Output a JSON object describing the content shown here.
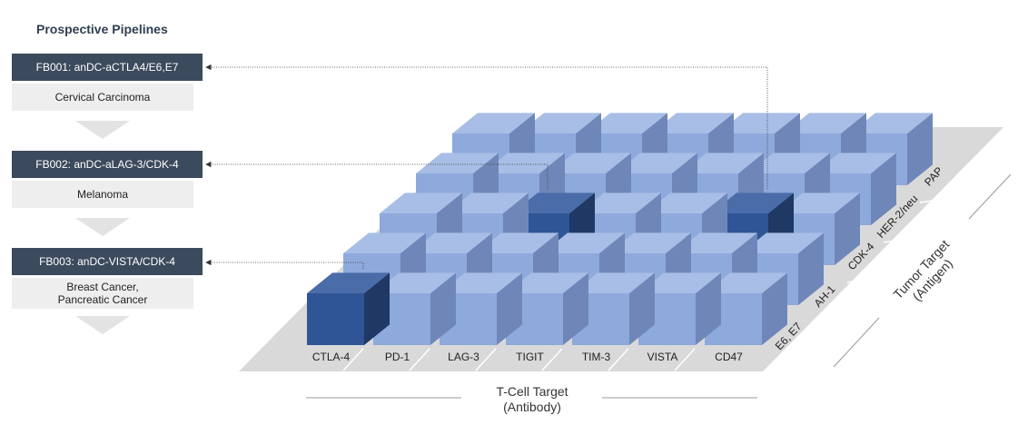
{
  "heading": "Prospective Pipelines",
  "pipelines": [
    {
      "code_label": "FB001: anDC-aCTLA4/E6,E7",
      "indication": "Cervical Carcinoma"
    },
    {
      "code_label": "FB002: anDC-aLAG-3/CDK-4",
      "indication": "Melanoma"
    },
    {
      "code_label": "FB003: anDC-VISTA/CDK-4",
      "indication": "Breast Cancer,\nPancreatic Cancer"
    }
  ],
  "matrix": {
    "t_cell_targets": [
      "CTLA-4",
      "PD-1",
      "LAG-3",
      "TIGIT",
      "TIM-3",
      "VISTA",
      "CD47"
    ],
    "tumor_targets": [
      "E6, E7",
      "AH-1",
      "CDK-4",
      "HER-2/neu",
      "PAP"
    ],
    "x_axis_title": "T-Cell Target",
    "x_axis_subtitle": "(Antibody)",
    "y_axis_title": "Tumor Target",
    "y_axis_subtitle": "(Antigen)",
    "highlighted": [
      {
        "t_cell": "CTLA-4",
        "tumor": "E6, E7",
        "pipeline": "FB001"
      },
      {
        "t_cell": "LAG-3",
        "tumor": "CDK-4",
        "pipeline": "FB002"
      },
      {
        "t_cell": "VISTA",
        "tumor": "CDK-4",
        "pipeline": "FB003"
      }
    ]
  },
  "colors": {
    "cube_front": "#8ea9db",
    "cube_top": "#a8bee6",
    "cube_side": "#6f87b8",
    "highlight_front": "#2f5597",
    "highlight_top": "#4a6ca8",
    "highlight_side": "#1f3864",
    "floor": "#d9d9d9",
    "header_bar": "#3b4a5c",
    "sub_bar": "#eeeeee"
  }
}
